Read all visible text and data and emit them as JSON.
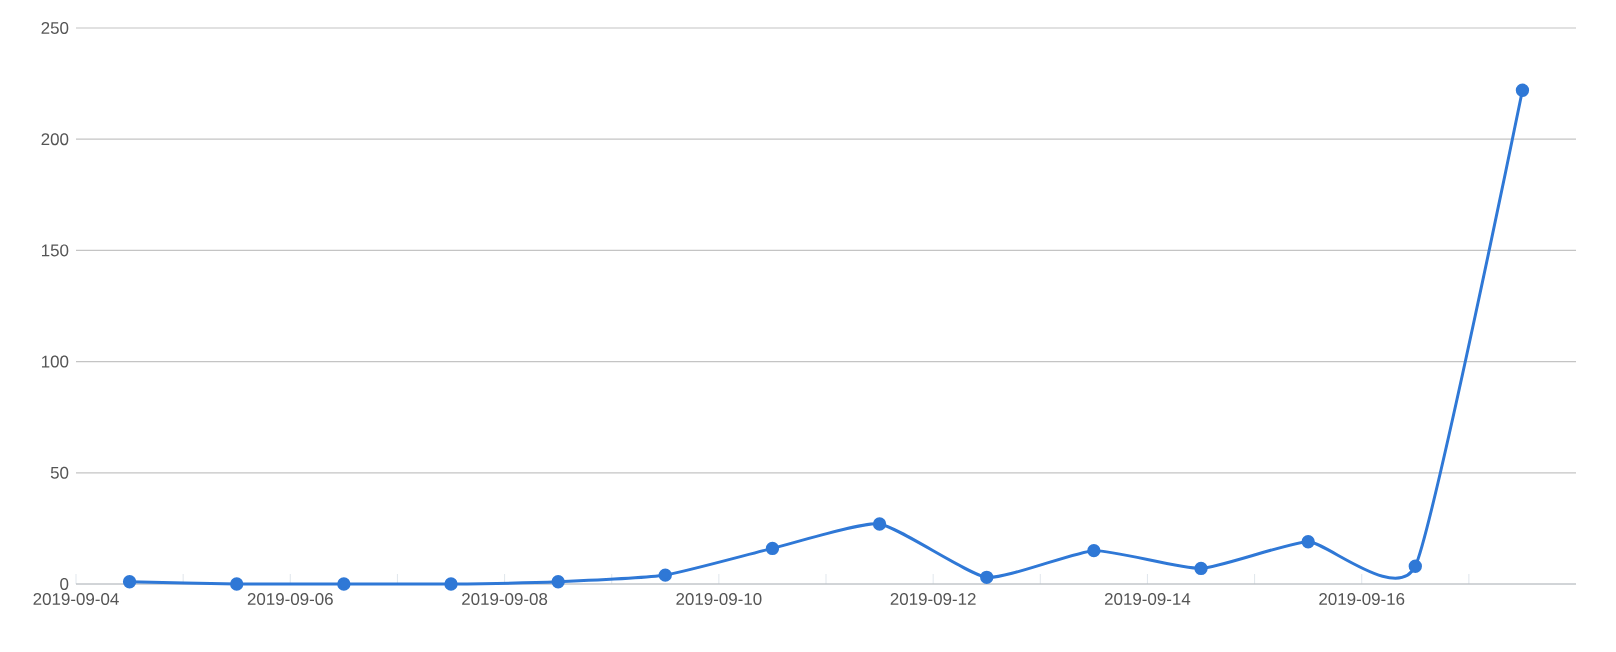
{
  "chart_data": {
    "type": "line",
    "x": [
      "2019-09-04T12:00",
      "2019-09-05T12:00",
      "2019-09-06T12:00",
      "2019-09-07T12:00",
      "2019-09-08T12:00",
      "2019-09-09T12:00",
      "2019-09-10T12:00",
      "2019-09-11T12:00",
      "2019-09-12T12:00",
      "2019-09-13T12:00",
      "2019-09-14T12:00",
      "2019-09-15T12:00",
      "2019-09-16T12:00",
      "2019-09-17T12:00"
    ],
    "series": [
      {
        "color": "#2f78d6",
        "values": [
          1,
          0,
          0,
          0,
          1,
          4,
          16,
          27,
          3,
          15,
          7,
          19,
          8,
          222
        ]
      }
    ],
    "xlim": [
      "2019-09-04",
      "2019-09-18"
    ],
    "xticks": [
      {
        "value": "2019-09-04",
        "label": "2019-09-04"
      },
      {
        "value": "2019-09-05",
        "label": null
      },
      {
        "value": "2019-09-06",
        "label": "2019-09-06"
      },
      {
        "value": "2019-09-07",
        "label": null
      },
      {
        "value": "2019-09-08",
        "label": "2019-09-08"
      },
      {
        "value": "2019-09-09",
        "label": null
      },
      {
        "value": "2019-09-10",
        "label": "2019-09-10"
      },
      {
        "value": "2019-09-11",
        "label": null
      },
      {
        "value": "2019-09-12",
        "label": "2019-09-12"
      },
      {
        "value": "2019-09-13",
        "label": null
      },
      {
        "value": "2019-09-14",
        "label": "2019-09-14"
      },
      {
        "value": "2019-09-15",
        "label": null
      },
      {
        "value": "2019-09-16",
        "label": "2019-09-16"
      },
      {
        "value": "2019-09-17",
        "label": null
      }
    ],
    "ylim": [
      0,
      250
    ],
    "yticks": [
      0,
      50,
      100,
      150,
      200,
      250
    ],
    "grid": "y",
    "marker": "circle",
    "line_style": "solid"
  }
}
